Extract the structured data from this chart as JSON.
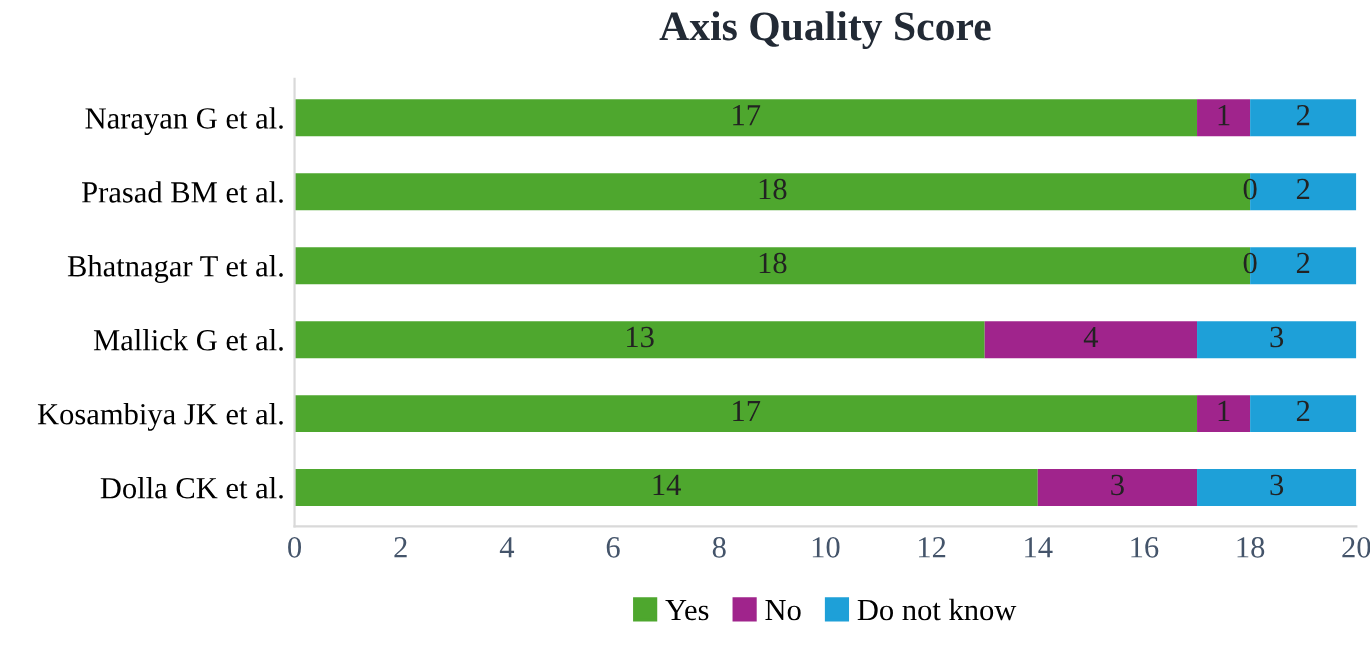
{
  "chart_data": {
    "type": "bar",
    "title": "Axis Quality Score",
    "orientation": "horizontal",
    "stacked": true,
    "categories": [
      "Narayan G et al.",
      "Prasad BM et al.",
      "Bhatnagar T et al.",
      "Mallick G et al.",
      "Kosambiya JK et al.",
      "Dolla CK et al."
    ],
    "series": [
      {
        "name": "Yes",
        "color": "#4ea72e",
        "values": [
          17,
          18,
          18,
          13,
          17,
          14
        ],
        "value_labels": [
          "17",
          "18",
          "18",
          "13",
          "17",
          "14"
        ]
      },
      {
        "name": "No",
        "color": "#a0248c",
        "values": [
          1,
          0,
          0,
          4,
          1,
          3
        ],
        "value_labels": [
          "1",
          null,
          null,
          "4",
          "1",
          "3"
        ]
      },
      {
        "name": "Do not know",
        "color": "#1ea0d8",
        "values": [
          2,
          2,
          2,
          3,
          2,
          3
        ],
        "value_labels": [
          "2",
          "2",
          "2",
          "3",
          "2",
          "3"
        ]
      }
    ],
    "annotations": [
      {
        "text": "0",
        "x": 18,
        "y": "Prasad BM et al."
      },
      {
        "text": "0",
        "x": 18,
        "y": "Bhatnagar T et al."
      }
    ],
    "xlim": [
      0,
      20
    ],
    "xticks": [
      0,
      2,
      4,
      6,
      8,
      10,
      12,
      14,
      16,
      18,
      20
    ],
    "grid": false,
    "legend": "bottom"
  }
}
